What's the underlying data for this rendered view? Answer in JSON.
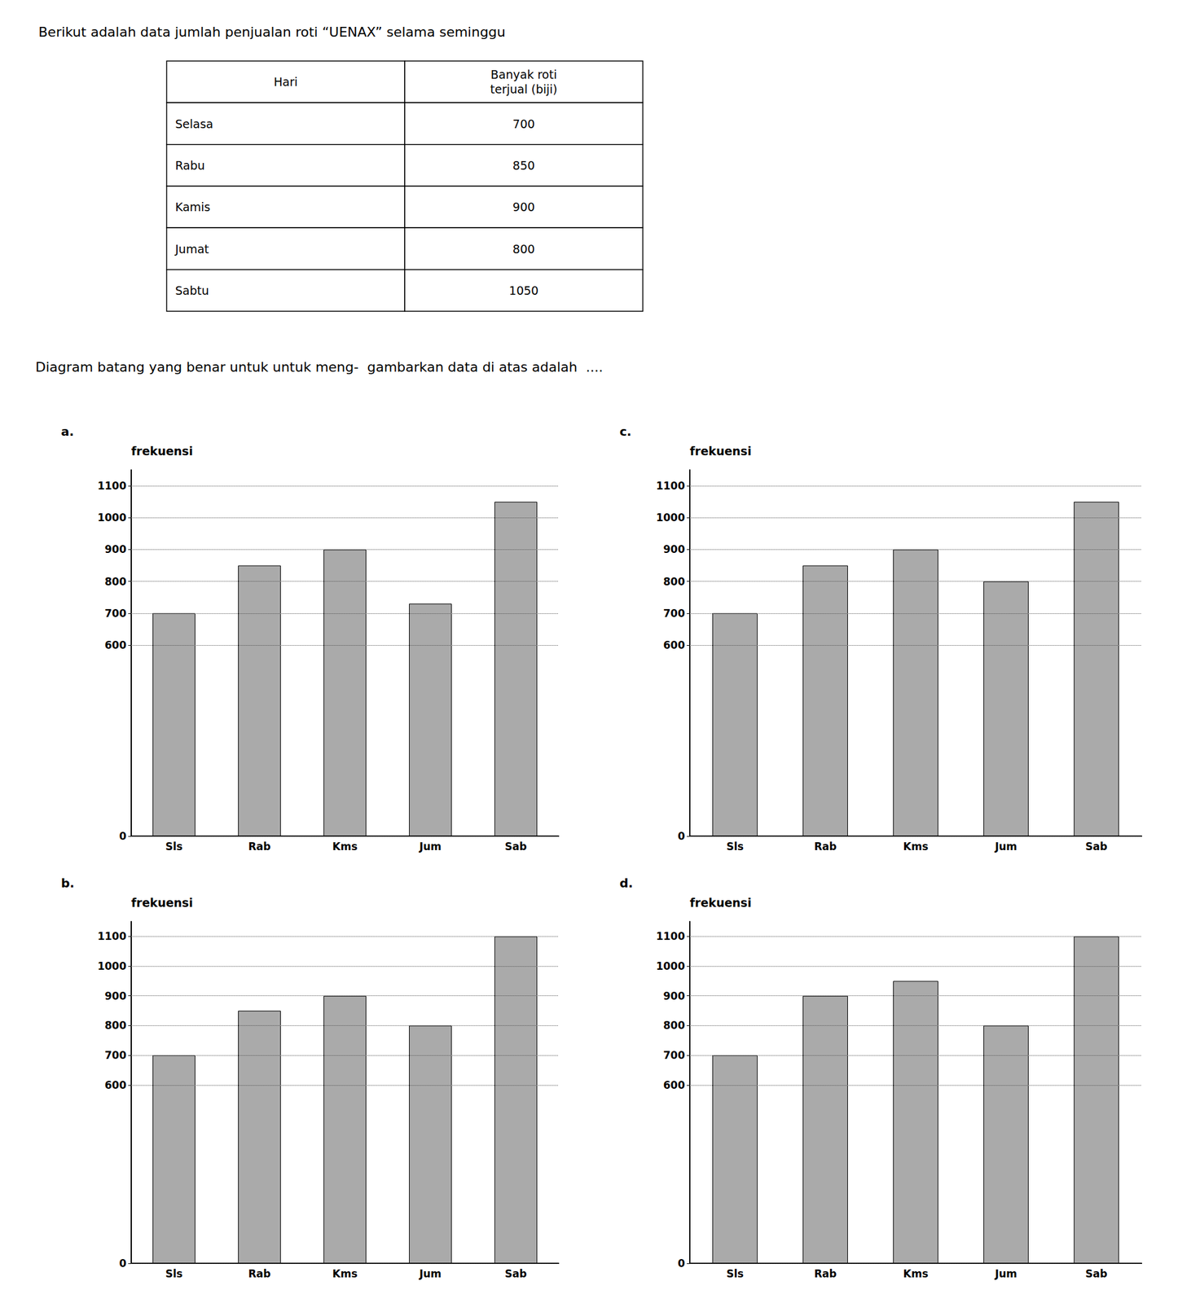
{
  "title": "Berikut adalah data jumlah penjualan roti “UENAX” selama seminggu",
  "annotations": [
    "Diagram batang yang benar untuk untuk meng-  gambarkan data di atas adalah  ...."
  ],
  "table": {
    "headers": [
      "Hari",
      "Banyak roti\nterjual (biji)"
    ],
    "rows": [
      [
        "Selasa",
        "700"
      ],
      [
        "Rabu",
        "850"
      ],
      [
        "Kamis",
        "900"
      ],
      [
        "Jumat",
        "800"
      ],
      [
        "Sabtu",
        "1050"
      ]
    ]
  },
  "chart_data": [
    {
      "type": "bar",
      "title": "a.",
      "ylabel": "frekuensi",
      "categories": [
        "Sls",
        "Rab",
        "Kms",
        "Jum",
        "Sab"
      ],
      "values": [
        700,
        850,
        900,
        730,
        1050
      ],
      "color": "#aaaaaa",
      "ylim": [
        0,
        1150
      ],
      "yticks": [
        0,
        600,
        700,
        800,
        900,
        1000,
        1100
      ],
      "grid": true
    },
    {
      "type": "bar",
      "title": "b.",
      "ylabel": "frekuensi",
      "categories": [
        "Sls",
        "Rab",
        "Kms",
        "Jum",
        "Sab"
      ],
      "values": [
        700,
        850,
        900,
        800,
        1100
      ],
      "color": "#aaaaaa",
      "ylim": [
        0,
        1150
      ],
      "yticks": [
        0,
        600,
        700,
        800,
        900,
        1000,
        1100
      ],
      "grid": true
    },
    {
      "type": "bar",
      "title": "c.",
      "ylabel": "frekuensi",
      "categories": [
        "Sls",
        "Rab",
        "Kms",
        "Jum",
        "Sab"
      ],
      "values": [
        700,
        850,
        900,
        800,
        1050
      ],
      "color": "#aaaaaa",
      "ylim": [
        0,
        1150
      ],
      "yticks": [
        0,
        600,
        700,
        800,
        900,
        1000,
        1100
      ],
      "grid": true
    },
    {
      "type": "bar",
      "title": "d.",
      "ylabel": "frekuensi",
      "categories": [
        "Sls",
        "Rab",
        "Kms",
        "Jum",
        "Sab"
      ],
      "values": [
        700,
        900,
        950,
        800,
        1100
      ],
      "color": "#aaaaaa",
      "ylim": [
        0,
        1150
      ],
      "yticks": [
        0,
        600,
        700,
        800,
        900,
        1000,
        1100
      ],
      "grid": true
    }
  ]
}
